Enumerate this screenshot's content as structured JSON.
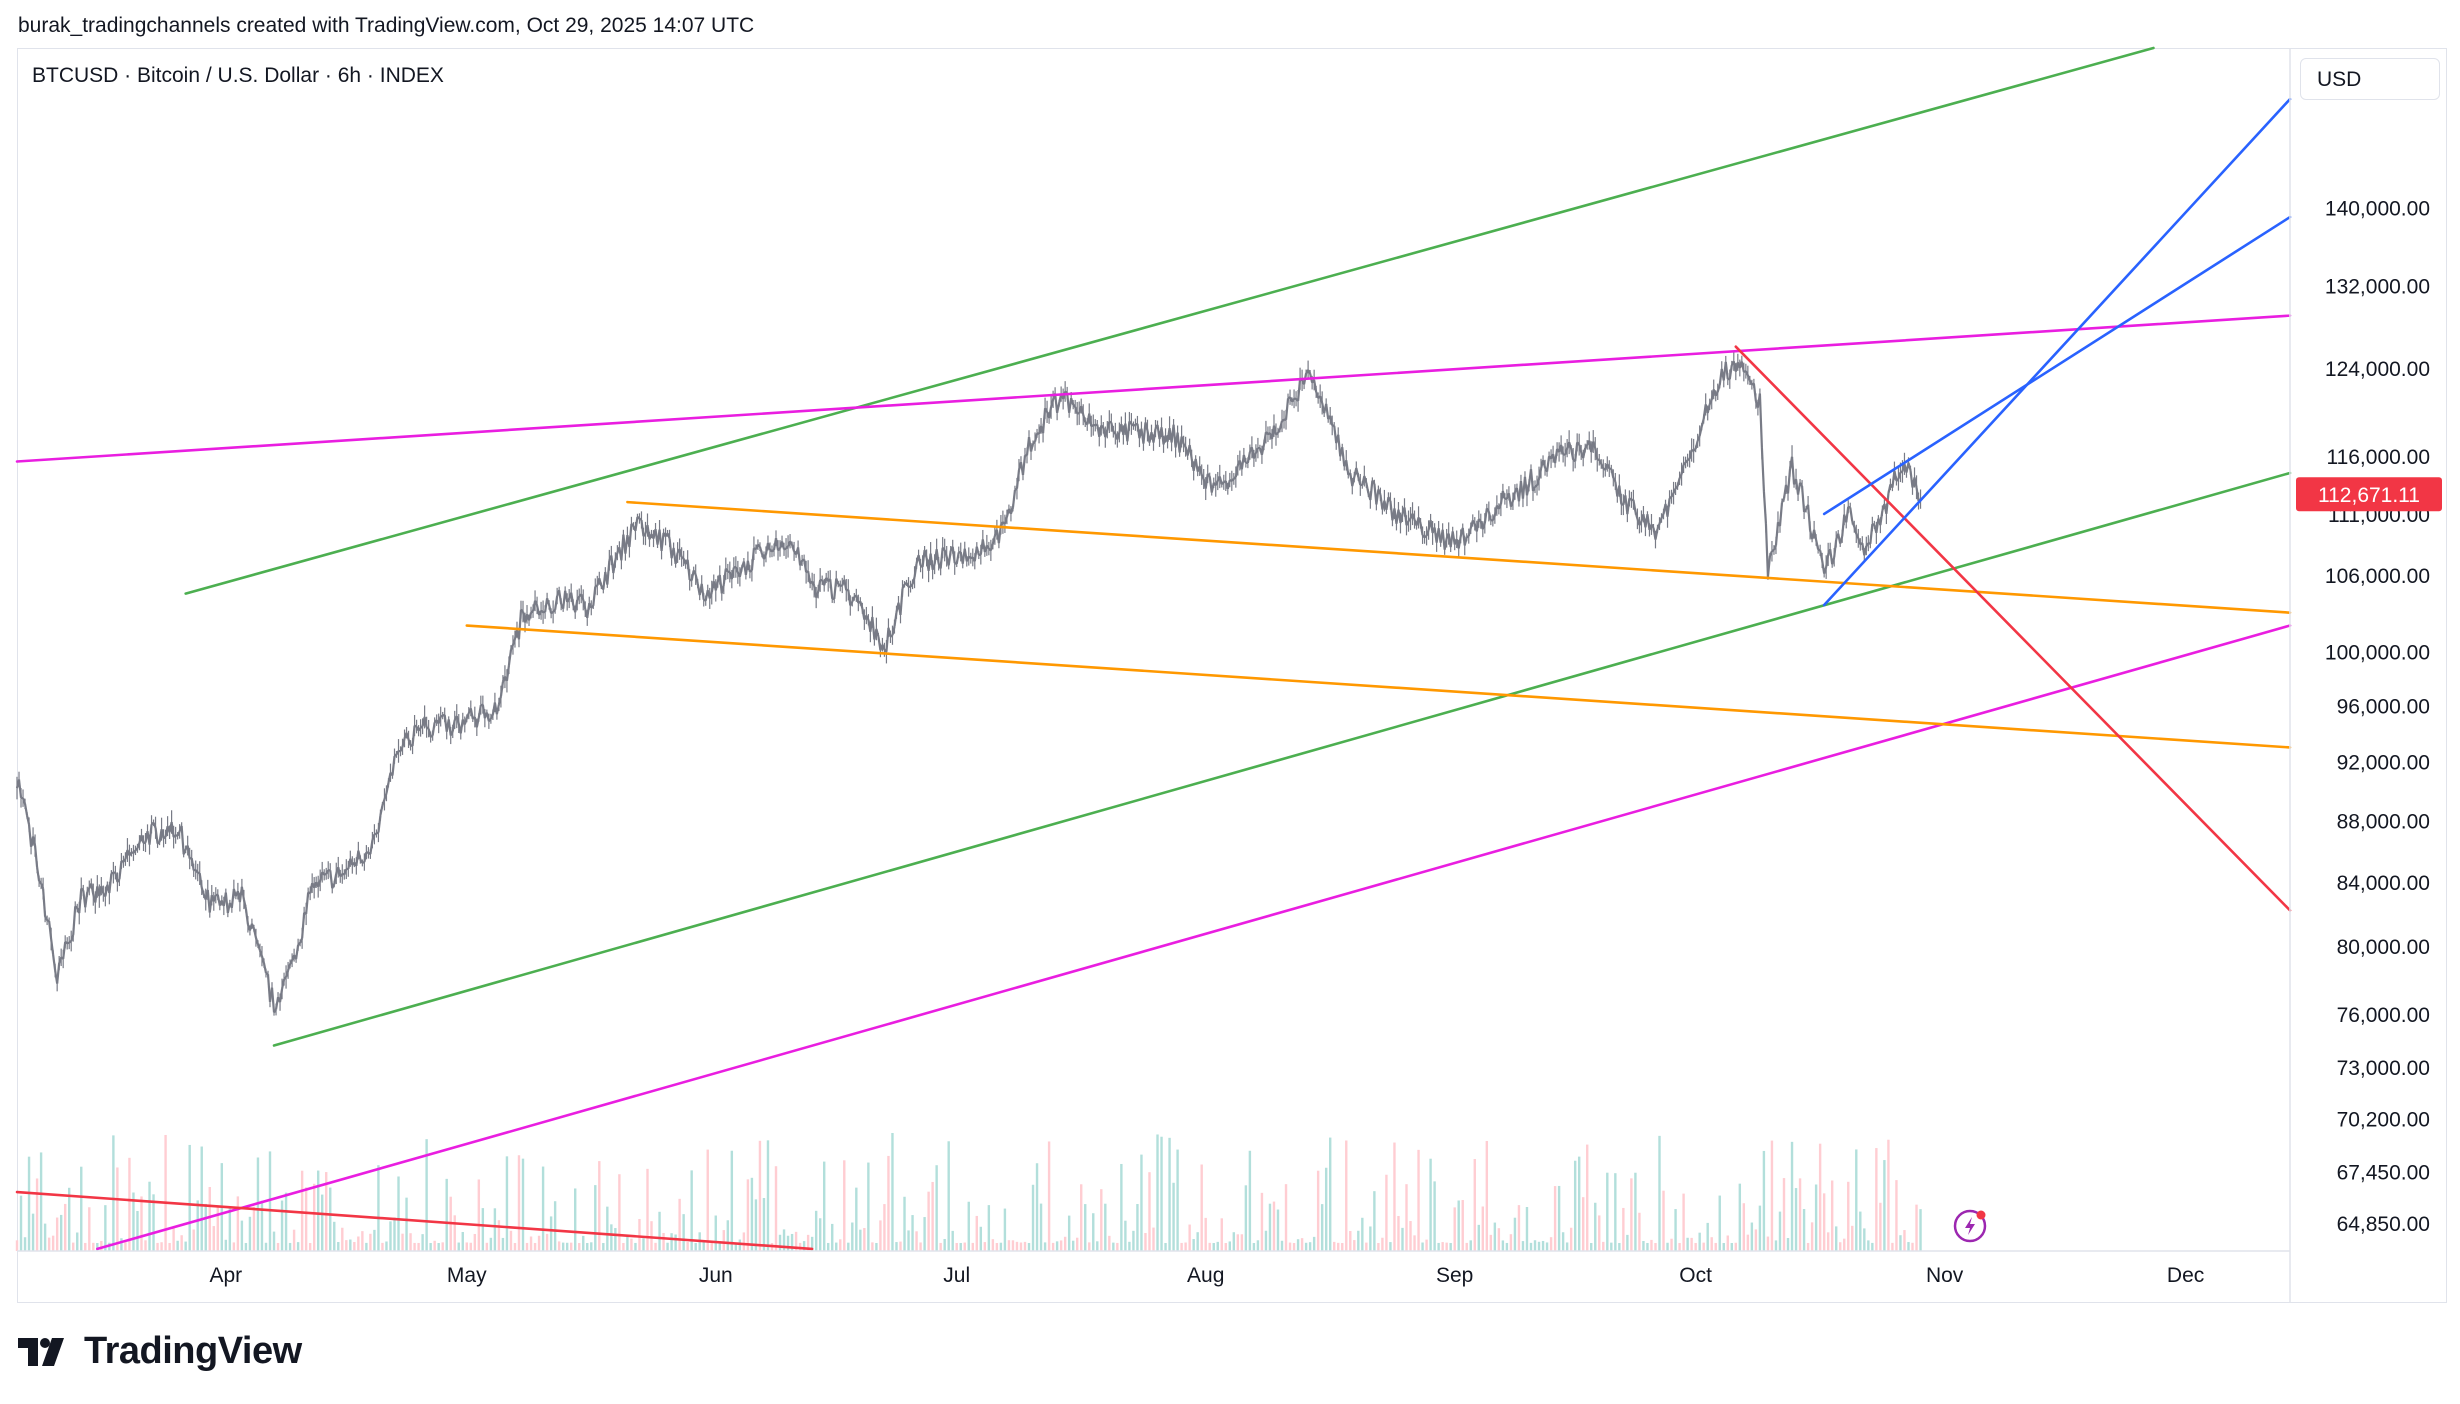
{
  "header": {
    "attribution": "burak_tradingchannels created with TradingView.com, Oct 29, 2025 14:07 UTC",
    "symbol_line": "BTCUSD · Bitcoin / U.S. Dollar · 6h · INDEX",
    "currency": "USD"
  },
  "brand": {
    "logo_text": "TradingView"
  },
  "colors": {
    "candle": "#787b86",
    "green_line": "#4caf50",
    "magenta_line": "#e91ee0",
    "orange_line": "#ff9800",
    "blue_line": "#2962ff",
    "red_line": "#f23645",
    "price_label_bg": "#f23645",
    "volume_up": "#b2dfdb",
    "volume_down": "#ffcdd2"
  },
  "chart_data": {
    "type": "line",
    "title": "BTCUSD · Bitcoin / U.S. Dollar · 6h · INDEX",
    "xlabel": "",
    "ylabel": "",
    "y_scale": "log",
    "ylim": [
      63500,
      158000
    ],
    "x_range": [
      "2025-03-06",
      "2025-12-14"
    ],
    "x_tick_labels": [
      {
        "label": "Apr",
        "date": "2025-04-01"
      },
      {
        "label": "May",
        "date": "2025-05-01"
      },
      {
        "label": "Jun",
        "date": "2025-06-01"
      },
      {
        "label": "Jul",
        "date": "2025-07-01"
      },
      {
        "label": "Aug",
        "date": "2025-08-01"
      },
      {
        "label": "Sep",
        "date": "2025-09-01"
      },
      {
        "label": "Oct",
        "date": "2025-10-01"
      },
      {
        "label": "Nov",
        "date": "2025-11-01"
      },
      {
        "label": "Dec",
        "date": "2025-12-01"
      }
    ],
    "y_tick_labels": [
      {
        "label": "140,000.00",
        "value": 140000
      },
      {
        "label": "132,000.00",
        "value": 132000
      },
      {
        "label": "124,000.00",
        "value": 124000
      },
      {
        "label": "116,000.00",
        "value": 116000
      },
      {
        "label": "111,000.00",
        "value": 111000
      },
      {
        "label": "106,000.00",
        "value": 106000
      },
      {
        "label": "100,000.00",
        "value": 100000
      },
      {
        "label": "96,000.00",
        "value": 96000
      },
      {
        "label": "92,000.00",
        "value": 92000
      },
      {
        "label": "88,000.00",
        "value": 88000
      },
      {
        "label": "84,000.00",
        "value": 84000
      },
      {
        "label": "80,000.00",
        "value": 80000
      },
      {
        "label": "76,000.00",
        "value": 76000
      },
      {
        "label": "73,000.00",
        "value": 73000
      },
      {
        "label": "70,200.00",
        "value": 70200
      },
      {
        "label": "67,450.00",
        "value": 67450
      },
      {
        "label": "64,850.00",
        "value": 64850
      }
    ],
    "last_price": {
      "label": "112,671.11",
      "value": 112671.11
    },
    "series": [
      {
        "values_note_free": true,
        "x": [
          "2025-03-06",
          "2025-03-09",
          "2025-03-11",
          "2025-03-14",
          "2025-03-18",
          "2025-03-22",
          "2025-03-26",
          "2025-03-30",
          "2025-04-03",
          "2025-04-07",
          "2025-04-09",
          "2025-04-12",
          "2025-04-16",
          "2025-04-20",
          "2025-04-22",
          "2025-04-25",
          "2025-04-30",
          "2025-05-05",
          "2025-05-08",
          "2025-05-12",
          "2025-05-16",
          "2025-05-22",
          "2025-05-26",
          "2025-05-31",
          "2025-06-05",
          "2025-06-10",
          "2025-06-13",
          "2025-06-17",
          "2025-06-22",
          "2025-06-26",
          "2025-07-02",
          "2025-07-07",
          "2025-07-10",
          "2025-07-14",
          "2025-07-18",
          "2025-07-23",
          "2025-07-28",
          "2025-08-02",
          "2025-08-08",
          "2025-08-14",
          "2025-08-19",
          "2025-08-25",
          "2025-09-01",
          "2025-09-05",
          "2025-09-10",
          "2025-09-14",
          "2025-09-18",
          "2025-09-22",
          "2025-09-26",
          "2025-10-01",
          "2025-10-03",
          "2025-10-06",
          "2025-10-09",
          "2025-10-10",
          "2025-10-13",
          "2025-10-15",
          "2025-10-17",
          "2025-10-20",
          "2025-10-22",
          "2025-10-24",
          "2025-10-26",
          "2025-10-27",
          "2025-10-29"
        ],
        "values": [
          91000,
          84000,
          78000,
          83000,
          84000,
          87000,
          87500,
          82500,
          83000,
          76500,
          78500,
          84000,
          84500,
          87000,
          92000,
          94500,
          94500,
          96000,
          103000,
          104000,
          103500,
          110000,
          108500,
          104500,
          107000,
          109000,
          105000,
          105000,
          100500,
          107000,
          107500,
          109500,
          117000,
          121500,
          118500,
          118000,
          118000,
          113000,
          116500,
          123500,
          114500,
          111000,
          108500,
          111000,
          113500,
          116000,
          117000,
          112000,
          109500,
          117000,
          122000,
          124500,
          121000,
          106000,
          115000,
          111000,
          106000,
          111000,
          108000,
          110500,
          114500,
          115500,
          112671.11
        ]
      }
    ],
    "trend_lines": [
      {
        "color": "green",
        "from": [
          "2025-04-07",
          74200
        ],
        "to": [
          "2025-12-14",
          114500
        ]
      },
      {
        "color": "green",
        "from": [
          "2025-03-27",
          104500
        ],
        "to": [
          "2025-11-27",
          158000
        ]
      },
      {
        "color": "magenta",
        "from": [
          "2025-03-06",
          115500
        ],
        "to": [
          "2025-12-14",
          129000
        ]
      },
      {
        "color": "magenta",
        "from": [
          "2025-03-16",
          63600
        ],
        "to": [
          "2025-12-14",
          102000
        ]
      },
      {
        "color": "orange",
        "from": [
          "2025-05-21",
          112000
        ],
        "to": [
          "2025-12-14",
          103000
        ]
      },
      {
        "color": "orange",
        "from": [
          "2025-05-01",
          102000
        ],
        "to": [
          "2025-12-14",
          93000
        ]
      },
      {
        "color": "red",
        "from": [
          "2025-10-06",
          126000
        ],
        "to": [
          "2025-12-14",
          82200
        ]
      },
      {
        "color": "red",
        "from": [
          "2025-03-06",
          66400
        ],
        "to": [
          "2025-06-13",
          63600
        ]
      },
      {
        "color": "blue",
        "from": [
          "2025-10-17",
          103600
        ],
        "to": [
          "2025-12-14",
          152000
        ]
      },
      {
        "color": "blue",
        "from": [
          "2025-10-17",
          111000
        ],
        "to": [
          "2025-12-14",
          139000
        ]
      }
    ]
  }
}
